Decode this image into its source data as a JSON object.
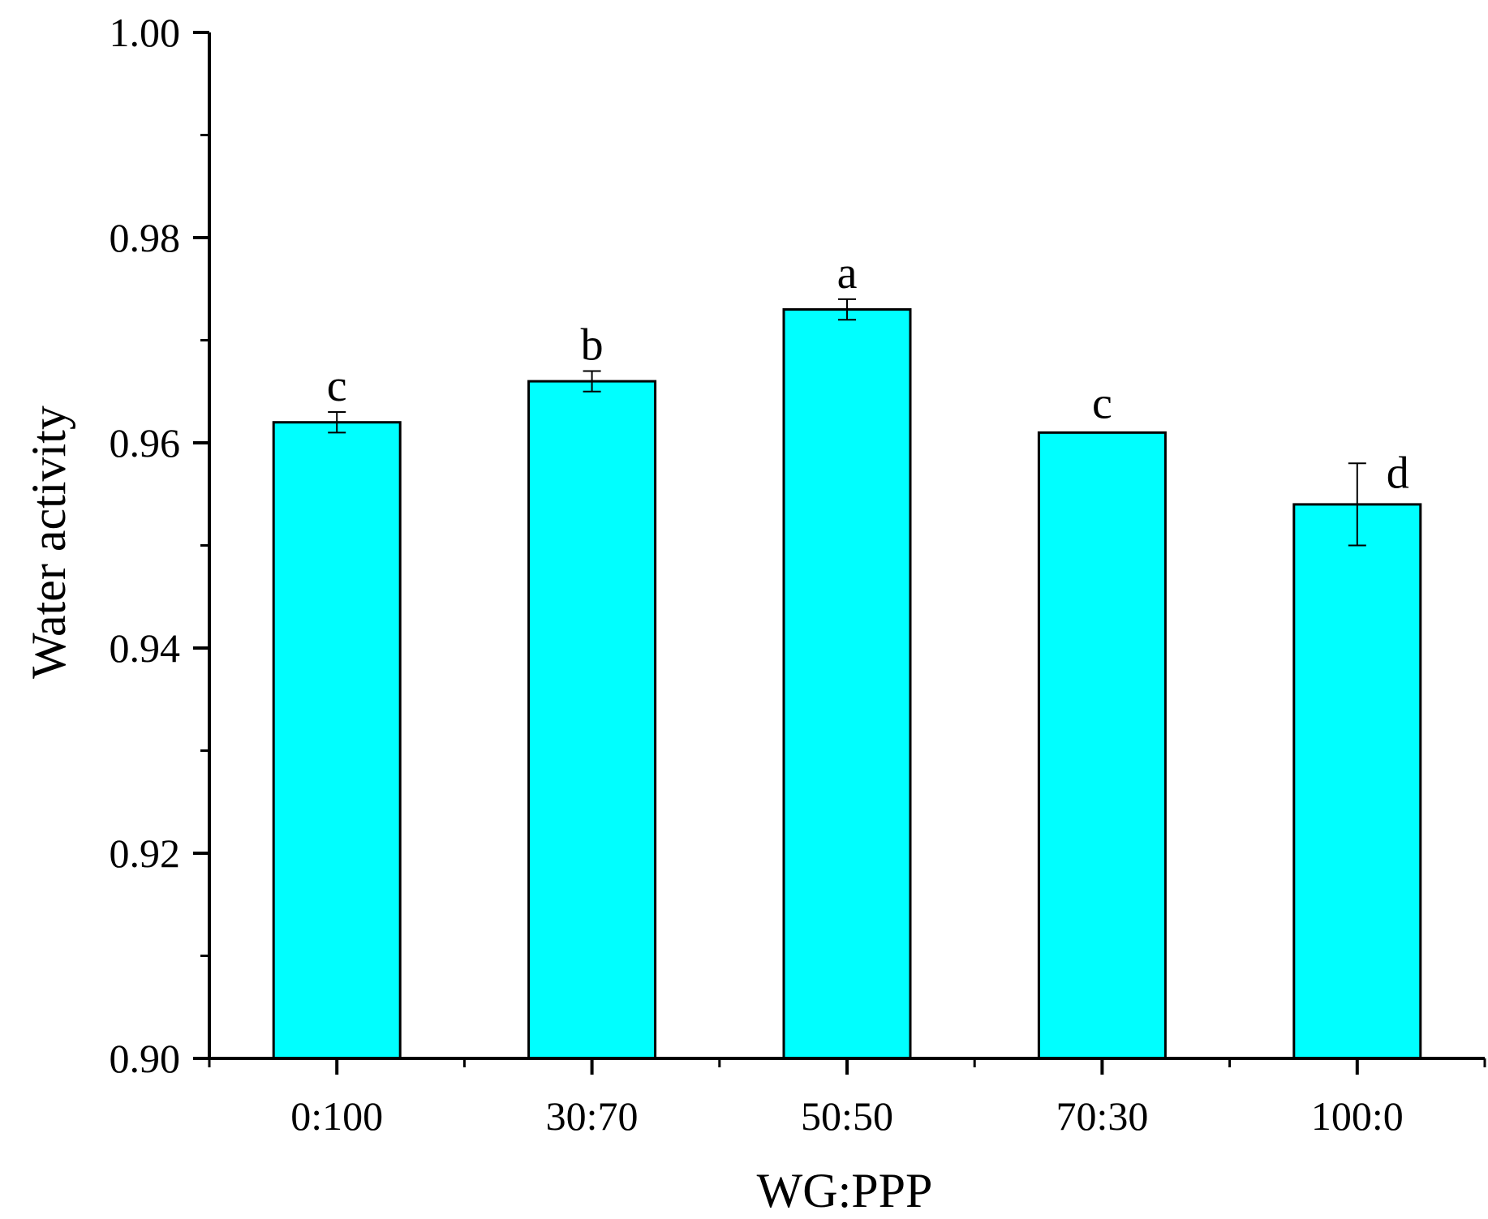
{
  "chart_data": {
    "type": "bar",
    "title": "",
    "xlabel": "WG:PPP",
    "ylabel": "Water activity",
    "categories": [
      "0:100",
      "30:70",
      "50:50",
      "70:30",
      "100:0"
    ],
    "values": [
      0.962,
      0.966,
      0.973,
      0.961,
      0.954
    ],
    "errors": [
      0.001,
      0.001,
      0.001,
      0.0,
      0.004
    ],
    "significance_labels": [
      "c",
      "b",
      "a",
      "c",
      "d"
    ],
    "ylim": [
      0.9,
      1.0
    ],
    "yticks": [
      0.9,
      0.92,
      0.94,
      0.96,
      0.98,
      1.0
    ],
    "ytick_labels": [
      "0.90",
      "0.92",
      "0.94",
      "0.96",
      "0.98",
      "1.00"
    ],
    "grid": false,
    "bar_color": "#00FFFF",
    "edge_color": "#000000"
  }
}
